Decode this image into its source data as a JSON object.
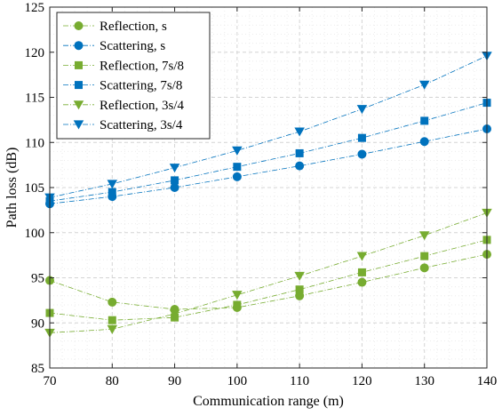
{
  "chart_data": {
    "type": "line",
    "title": "",
    "xlabel": "Communication range (m)",
    "ylabel": "Path loss (dB)",
    "xlim": [
      70,
      140
    ],
    "ylim": [
      85,
      125
    ],
    "x_ticks": [
      70,
      80,
      90,
      100,
      110,
      120,
      130,
      140
    ],
    "y_ticks": [
      85,
      90,
      95,
      100,
      105,
      110,
      115,
      120,
      125
    ],
    "grid": true,
    "legend_position": "top-left",
    "x": [
      70,
      80,
      90,
      100,
      110,
      120,
      130,
      140
    ],
    "series": [
      {
        "name": "Reflection, s",
        "color": "#77ac30",
        "marker": "circle",
        "values": [
          94.7,
          92.3,
          91.5,
          91.7,
          93.0,
          94.5,
          96.1,
          97.6
        ]
      },
      {
        "name": "Scattering, s",
        "color": "#0072bd",
        "marker": "circle",
        "values": [
          103.2,
          104.0,
          105.0,
          106.2,
          107.4,
          108.7,
          110.1,
          111.5
        ]
      },
      {
        "name": "Reflection, 7s/8",
        "color": "#77ac30",
        "marker": "square",
        "values": [
          91.1,
          90.3,
          90.6,
          92.0,
          93.7,
          95.6,
          97.4,
          99.2
        ]
      },
      {
        "name": "Scattering, 7s/8",
        "color": "#0072bd",
        "marker": "square",
        "values": [
          103.5,
          104.5,
          105.8,
          107.3,
          108.8,
          110.5,
          112.4,
          114.4
        ]
      },
      {
        "name": "Reflection, 3s/4",
        "color": "#77ac30",
        "marker": "triangle-down",
        "values": [
          88.9,
          89.3,
          91.0,
          93.1,
          95.2,
          97.4,
          99.7,
          102.2
        ]
      },
      {
        "name": "Scattering, 3s/4",
        "color": "#0072bd",
        "marker": "triangle-down",
        "values": [
          103.9,
          105.4,
          107.2,
          109.1,
          111.2,
          113.7,
          116.4,
          119.6
        ]
      }
    ]
  }
}
